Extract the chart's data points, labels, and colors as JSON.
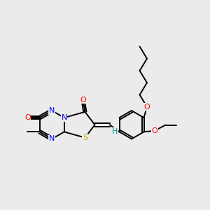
{
  "bg_color": "#ebebeb",
  "atom_colors": {
    "C": "#000000",
    "N": "#0000ff",
    "O": "#ff0000",
    "S": "#ccaa00",
    "H": "#008888"
  },
  "bond_color": "#000000",
  "bond_width": 1.4,
  "dbo": 0.09,
  "figsize": [
    3.0,
    3.0
  ],
  "dpi": 100
}
